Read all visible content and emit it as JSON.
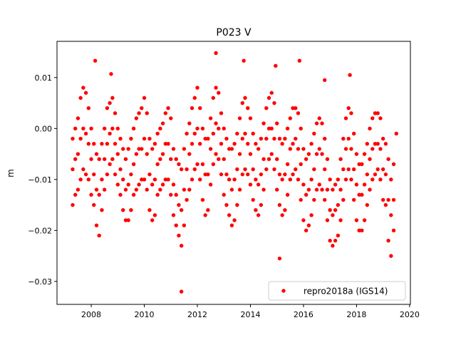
{
  "chart_data": {
    "type": "scatter",
    "title": "P023 V",
    "xlabel": "",
    "ylabel": "m",
    "xlim": [
      2006.71,
      2020.03
    ],
    "ylim": [
      -0.0345,
      0.0171
    ],
    "xticks": [
      2008,
      2010,
      2012,
      2014,
      2016,
      2018,
      2020
    ],
    "xtick_labels": [
      "2008",
      "2010",
      "2012",
      "2014",
      "2016",
      "2018",
      "2020"
    ],
    "yticks": [
      0.01,
      0.0,
      -0.01,
      -0.02,
      -0.03
    ],
    "ytick_labels": [
      "0.01",
      "0.00",
      "−0.01",
      "−0.02",
      "−0.03"
    ],
    "grid": false,
    "legend_position": "lower-right",
    "series": [
      {
        "name": "repro2018a (IGS14)",
        "color": "#ff0000",
        "marker": "circle",
        "x": [
          2007.3,
          2007.4,
          2007.5,
          2007.6,
          2007.7,
          2007.8,
          2007.9,
          2008.0,
          2008.1,
          2008.2,
          2008.3,
          2008.4,
          2008.5,
          2008.6,
          2008.7,
          2008.8,
          2008.9,
          2009.0,
          2009.1,
          2009.2,
          2009.3,
          2009.4,
          2009.5,
          2009.6,
          2009.7,
          2009.8,
          2009.9,
          2010.0,
          2010.1,
          2010.2,
          2010.3,
          2010.4,
          2010.5,
          2010.6,
          2010.7,
          2010.8,
          2010.9,
          2011.0,
          2011.1,
          2011.2,
          2011.3,
          2011.4,
          2011.5,
          2011.6,
          2011.7,
          2011.8,
          2011.9,
          2012.0,
          2012.1,
          2012.2,
          2012.3,
          2012.4,
          2012.5,
          2012.6,
          2012.7,
          2012.8,
          2012.9,
          2013.0,
          2013.1,
          2013.2,
          2013.3,
          2013.4,
          2013.5,
          2013.6,
          2013.7,
          2013.8,
          2013.9,
          2014.0,
          2014.1,
          2014.2,
          2014.3,
          2014.4,
          2014.5,
          2014.6,
          2014.7,
          2014.8,
          2014.9,
          2015.0,
          2015.1,
          2015.2,
          2015.3,
          2015.4,
          2015.5,
          2015.6,
          2015.7,
          2015.8,
          2015.9,
          2016.0,
          2016.1,
          2016.2,
          2016.3,
          2016.4,
          2016.5,
          2016.6,
          2016.7,
          2016.8,
          2016.9,
          2017.0,
          2017.1,
          2017.2,
          2017.3,
          2017.4,
          2017.5,
          2017.6,
          2017.7,
          2017.8,
          2017.9,
          2018.0,
          2018.1,
          2018.2,
          2018.3,
          2018.4,
          2018.5,
          2018.6,
          2018.7,
          2018.8,
          2018.9,
          2019.0,
          2019.1,
          2019.2,
          2019.3,
          2019.4,
          2008.15,
          2008.75,
          2011.4,
          2012.7,
          2013.75,
          2014.95,
          2015.1,
          2015.85,
          2016.8,
          2017.75,
          2019.5
        ],
        "y": [
          [
            -0.002,
            -0.008,
            -0.015
          ],
          [
            0.0,
            -0.006,
            -0.013
          ],
          [
            0.002,
            -0.005,
            -0.012
          ],
          [
            0.006,
            -0.002,
            -0.01
          ],
          [
            0.008,
            0.0,
            -0.008
          ],
          [
            0.007,
            -0.001,
            -0.009
          ],
          [
            0.004,
            -0.003,
            -0.01
          ],
          [
            0.0,
            -0.006,
            -0.013
          ],
          [
            -0.003,
            -0.009,
            -0.015
          ],
          [
            -0.005,
            -0.012,
            -0.019
          ],
          [
            -0.006,
            -0.013,
            -0.021
          ],
          [
            -0.003,
            -0.01,
            -0.016
          ],
          [
            0.0,
            -0.006,
            -0.012
          ],
          [
            0.004,
            -0.003,
            -0.009
          ],
          [
            0.005,
            -0.001,
            -0.007
          ],
          [
            0.006,
            0.0,
            -0.006
          ],
          [
            0.003,
            -0.003,
            -0.009
          ],
          [
            0.0,
            -0.005,
            -0.011
          ],
          [
            -0.002,
            -0.008,
            -0.013
          ],
          [
            -0.004,
            -0.01,
            -0.016
          ],
          [
            -0.006,
            -0.012,
            -0.018
          ],
          [
            -0.004,
            -0.011,
            -0.018
          ],
          [
            -0.002,
            -0.009,
            -0.016
          ],
          [
            0.0,
            -0.007,
            -0.013
          ],
          [
            0.002,
            -0.005,
            -0.012
          ],
          [
            0.003,
            -0.004,
            -0.011
          ],
          [
            0.004,
            -0.004,
            -0.01
          ],
          [
            0.006,
            -0.002,
            -0.01
          ],
          [
            0.003,
            -0.005,
            -0.012
          ],
          [
            -0.002,
            -0.009,
            -0.016
          ],
          [
            -0.004,
            -0.011,
            -0.018
          ],
          [
            -0.003,
            -0.01,
            -0.017
          ],
          [
            -0.001,
            -0.007,
            -0.013
          ],
          [
            0.0,
            -0.006,
            -0.012
          ],
          [
            0.001,
            -0.005,
            -0.011
          ],
          [
            0.003,
            -0.003,
            -0.01
          ],
          [
            0.004,
            -0.003,
            -0.01
          ],
          [
            0.002,
            -0.006,
            -0.013
          ],
          [
            -0.004,
            -0.011,
            -0.017
          ],
          [
            -0.006,
            -0.013,
            -0.019
          ],
          [
            -0.007,
            -0.015,
            -0.021
          ],
          [
            -0.008,
            -0.016,
            -0.023
          ],
          [
            -0.004,
            -0.012,
            -0.019
          ],
          [
            -0.001,
            -0.008,
            -0.014
          ],
          [
            0.001,
            -0.005,
            -0.012
          ],
          [
            0.004,
            -0.003,
            -0.01
          ],
          [
            0.006,
            -0.001,
            -0.008
          ],
          [
            0.008,
            0.0,
            -0.007
          ],
          [
            0.004,
            -0.003,
            -0.01
          ],
          [
            0.0,
            -0.007,
            -0.014
          ],
          [
            -0.002,
            -0.009,
            -0.017
          ],
          [
            -0.002,
            -0.009,
            -0.016
          ],
          [
            0.002,
            -0.004,
            -0.011
          ],
          [
            0.006,
            -0.001,
            -0.007
          ],
          [
            0.008,
            0.001,
            -0.005
          ],
          [
            0.007,
            0.0,
            -0.006
          ],
          [
            0.003,
            -0.003,
            -0.009
          ],
          [
            0.0,
            -0.006,
            -0.013
          ],
          [
            -0.002,
            -0.009,
            -0.015
          ],
          [
            -0.004,
            -0.01,
            -0.017
          ],
          [
            -0.004,
            -0.012,
            -0.019
          ],
          [
            -0.003,
            -0.01,
            -0.018
          ],
          [
            -0.001,
            -0.008,
            -0.015
          ],
          [
            0.002,
            -0.005,
            -0.012
          ],
          [
            0.005,
            -0.002,
            -0.009
          ],
          [
            0.006,
            -0.001,
            -0.008
          ],
          [
            0.004,
            -0.003,
            -0.009
          ],
          [
            0.002,
            -0.005,
            -0.011
          ],
          [
            -0.001,
            -0.008,
            -0.014
          ],
          [
            -0.003,
            -0.01,
            -0.016
          ],
          [
            -0.004,
            -0.011,
            -0.017
          ],
          [
            -0.002,
            -0.009,
            -0.015
          ],
          [
            0.001,
            -0.006,
            -0.012
          ],
          [
            0.004,
            -0.002,
            -0.008
          ],
          [
            0.006,
            0.0,
            -0.006
          ],
          [
            0.007,
            0.0,
            -0.005
          ],
          [
            0.005,
            -0.002,
            -0.008
          ],
          [
            0.001,
            -0.006,
            -0.012
          ],
          [
            -0.002,
            -0.009,
            -0.015
          ],
          [
            -0.003,
            -0.01,
            -0.017
          ],
          [
            -0.002,
            -0.009,
            -0.016
          ],
          [
            0.0,
            -0.007,
            -0.013
          ],
          [
            0.002,
            -0.004,
            -0.01
          ],
          [
            0.004,
            -0.003,
            -0.009
          ],
          [
            0.004,
            -0.002,
            -0.008
          ],
          [
            0.003,
            -0.004,
            -0.01
          ],
          [
            0.0,
            -0.007,
            -0.014
          ],
          [
            -0.004,
            -0.011,
            -0.018
          ],
          [
            -0.006,
            -0.013,
            -0.02
          ],
          [
            -0.005,
            -0.012,
            -0.019
          ],
          [
            -0.003,
            -0.01,
            -0.017
          ],
          [
            -0.001,
            -0.008,
            -0.014
          ],
          [
            0.001,
            -0.005,
            -0.012
          ],
          [
            0.002,
            -0.004,
            -0.011
          ],
          [
            0.001,
            -0.005,
            -0.012
          ],
          [
            -0.002,
            -0.008,
            -0.014
          ],
          [
            -0.006,
            -0.012,
            -0.018
          ],
          [
            -0.01,
            -0.016,
            -0.022
          ],
          [
            -0.012,
            -0.017,
            -0.023
          ],
          [
            -0.011,
            -0.016,
            -0.022
          ],
          [
            -0.01,
            -0.015,
            -0.021
          ],
          [
            -0.006,
            -0.012,
            -0.018
          ],
          [
            -0.002,
            -0.008,
            -0.014
          ],
          [
            0.002,
            -0.004,
            -0.01
          ],
          [
            0.004,
            -0.002,
            -0.008
          ],
          [
            0.003,
            -0.004,
            -0.01
          ],
          [
            -0.001,
            -0.008,
            -0.014
          ],
          [
            -0.005,
            -0.011,
            -0.018
          ],
          [
            -0.007,
            -0.013,
            -0.02
          ],
          [
            -0.007,
            -0.013,
            -0.02
          ],
          [
            -0.005,
            -0.011,
            -0.018
          ],
          [
            -0.003,
            -0.009,
            -0.015
          ],
          [
            0.0,
            -0.006,
            -0.012
          ],
          [
            0.002,
            -0.004,
            -0.01
          ],
          [
            0.003,
            -0.003,
            -0.009
          ],
          [
            0.003,
            -0.003,
            -0.008
          ],
          [
            0.002,
            -0.004,
            -0.01
          ],
          [
            -0.002,
            -0.008,
            -0.014
          ],
          [
            -0.003,
            -0.009,
            -0.015
          ],
          [
            -0.006,
            -0.014,
            -0.022
          ],
          [
            -0.01,
            -0.017,
            -0.025
          ],
          [
            -0.007,
            -0.014,
            -0.02
          ],
          [
            0.0133
          ],
          [
            0.0107
          ],
          [
            -0.032
          ],
          [
            0.0148
          ],
          [
            0.0133
          ],
          [
            0.0123
          ],
          [
            -0.0255
          ],
          [
            0.0133
          ],
          [
            0.0095
          ],
          [
            0.0105
          ],
          [
            -0.001
          ]
        ]
      }
    ]
  }
}
